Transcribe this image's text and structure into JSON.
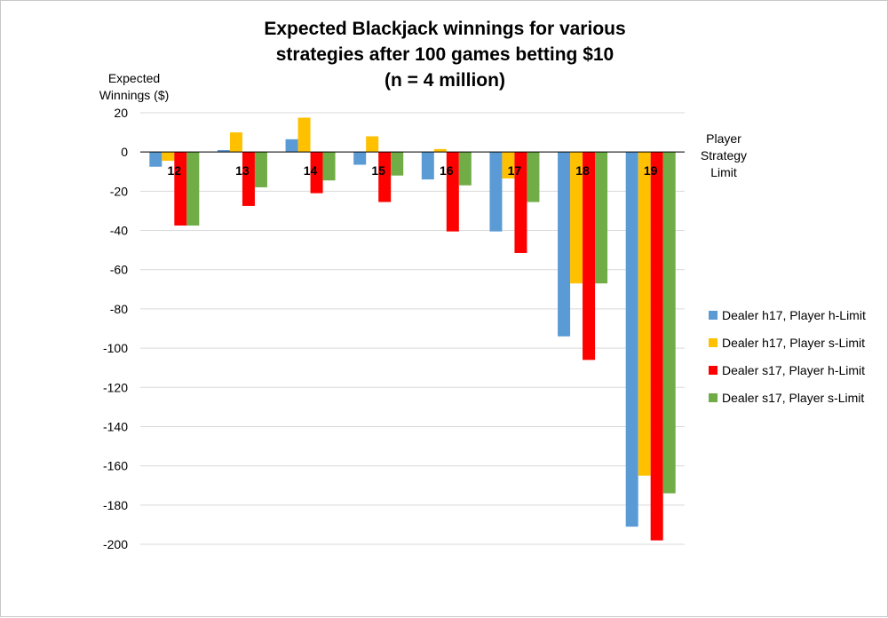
{
  "chart_data": {
    "type": "bar",
    "title_lines": [
      "Expected Blackjack winnings for various",
      "strategies after 100 games betting $10",
      "(n = 4 million)"
    ],
    "ylabel_lines": [
      "Expected",
      "Winnings ($)"
    ],
    "xlabel_lines": [
      "Player",
      "Strategy",
      "Limit"
    ],
    "ylim": [
      -200,
      20
    ],
    "yticks": [
      20,
      0,
      -20,
      -40,
      -60,
      -80,
      -100,
      -120,
      -140,
      -160,
      -180,
      -200
    ],
    "grid": true,
    "legend_position": "right",
    "categories": [
      "12",
      "13",
      "14",
      "15",
      "16",
      "17",
      "18",
      "19"
    ],
    "series": [
      {
        "name": "Dealer h17, Player h-Limit",
        "color": "#5b9bd5",
        "values": [
          -7.5,
          1,
          6.5,
          -6.5,
          -14,
          -40.5,
          -94,
          -191
        ]
      },
      {
        "name": "Dealer h17, Player s-Limit",
        "color": "#ffc000",
        "values": [
          -4.5,
          10,
          17.5,
          8,
          1.5,
          -13.5,
          -67,
          -165
        ]
      },
      {
        "name": "Dealer s17, Player h-Limit",
        "color": "#ff0000",
        "values": [
          -37.5,
          -27.5,
          -21,
          -25.5,
          -40.5,
          -51.5,
          -106,
          -198
        ]
      },
      {
        "name": "Dealer s17, Player s-Limit",
        "color": "#70ad47",
        "values": [
          -37.5,
          -18,
          -14.5,
          -12,
          -17,
          -25.5,
          -67,
          -174
        ]
      }
    ]
  }
}
